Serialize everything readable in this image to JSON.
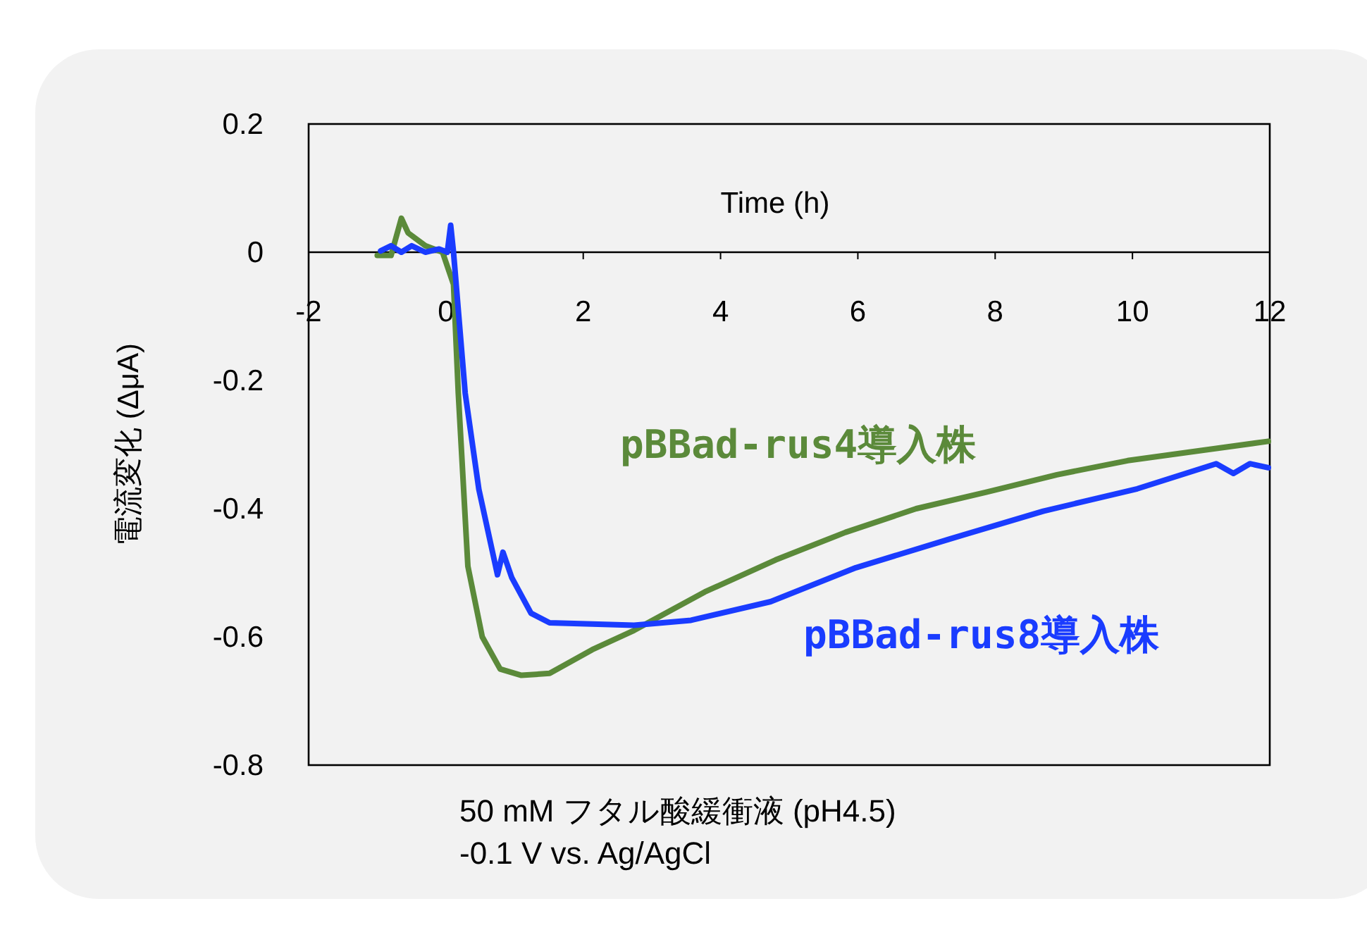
{
  "chart_data": {
    "type": "line",
    "xlabel": "Time (h)",
    "ylabel": "電流変化 (ΔμA)",
    "xlim": [
      -2,
      12
    ],
    "ylim": [
      -0.8,
      0.2
    ],
    "xticks": [
      -2,
      0,
      2,
      4,
      6,
      8,
      10,
      12
    ],
    "yticks": [
      0.2,
      0,
      -0.2,
      -0.4,
      -0.6,
      -0.8
    ],
    "grid": false,
    "marker": "none",
    "line_style": "solid",
    "annotations": [
      "50 mM フタル酸緩衝液 (pH4.5)",
      "-0.1 V vs. Ag/AgCl"
    ],
    "series": [
      {
        "name": "pBBad-rus4導入株",
        "color": "#5b8a3a",
        "x": [
          -1.0,
          -0.8,
          -0.65,
          -0.55,
          -0.3,
          -0.05,
          0.11,
          0.18,
          0.32,
          0.53,
          0.79,
          1.1,
          1.51,
          2.13,
          2.74,
          3.77,
          4.8,
          5.82,
          6.85,
          7.88,
          8.9,
          9.93,
          10.96,
          11.98
        ],
        "values": [
          -0.005,
          -0.005,
          0.053,
          0.03,
          0.01,
          0.0,
          -0.05,
          -0.22,
          -0.49,
          -0.6,
          -0.65,
          -0.66,
          -0.657,
          -0.62,
          -0.59,
          -0.53,
          -0.48,
          -0.437,
          -0.4,
          -0.374,
          -0.347,
          -0.325,
          -0.31,
          -0.295
        ]
      },
      {
        "name": "pBBad-rus8導入株",
        "color": "#1a3cff",
        "x": [
          -0.95,
          -0.8,
          -0.65,
          -0.5,
          -0.3,
          -0.1,
          0.02,
          0.07,
          0.11,
          0.28,
          0.48,
          0.75,
          0.83,
          0.96,
          1.24,
          1.51,
          2.13,
          2.74,
          3.57,
          4.73,
          5.97,
          7.32,
          8.7,
          10.07,
          11.22,
          11.47,
          11.71,
          11.98
        ],
        "values": [
          0.002,
          0.01,
          0.0,
          0.01,
          0.0,
          0.005,
          0.0,
          0.042,
          0.0,
          -0.22,
          -0.37,
          -0.503,
          -0.468,
          -0.508,
          -0.563,
          -0.578,
          -0.58,
          -0.582,
          -0.574,
          -0.545,
          -0.492,
          -0.448,
          -0.404,
          -0.369,
          -0.33,
          -0.345,
          -0.33,
          -0.336
        ]
      }
    ]
  }
}
